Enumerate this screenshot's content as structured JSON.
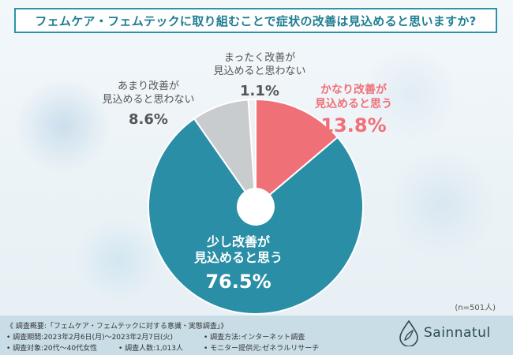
{
  "title": "フェムケア・フェムテックに取り組むことで症状の改善は見込めると思いますか?",
  "n_label": "(n=501人)",
  "chart_data": {
    "type": "pie",
    "categories": [
      "かなり改善が見込めると思う",
      "少し改善が見込めると思う",
      "あまり改善が見込めると思わない",
      "まったく改善が見込めると思わない"
    ],
    "label_lines": [
      [
        "かなり改善が",
        "見込めると思う"
      ],
      [
        "少し改善が",
        "見込めると思う"
      ],
      [
        "あまり改善が",
        "見込めると思わない"
      ],
      [
        "まったく改善が",
        "見込めると思わない"
      ]
    ],
    "values": [
      13.8,
      76.5,
      8.6,
      1.1
    ],
    "value_labels": [
      "13.8%",
      "76.5%",
      "8.6%",
      "1.1%"
    ],
    "colors": [
      "#f07078",
      "#2a8ea6",
      "#c9ccce",
      "#eef0f1"
    ],
    "label_colors": [
      "#f07078",
      "#ffffff",
      "#555555",
      "#555555"
    ]
  },
  "footer": {
    "heading": "《 調査概要:「フェムケア・フェムテックに対する意識・実態調査」》",
    "period": "• 調査期間:2023年2月6日(月)〜2023年2月7日(火)",
    "method": "• 調査方法:インターネット調査",
    "target": "• 調査対象:20代〜40代女性",
    "count": "• 調査人数:1,013人",
    "provider": "• モニター提供元:ゼネラルリサーチ"
  },
  "brand": {
    "name": "Sainnatul",
    "icon": "droplet-leaf-logo"
  }
}
